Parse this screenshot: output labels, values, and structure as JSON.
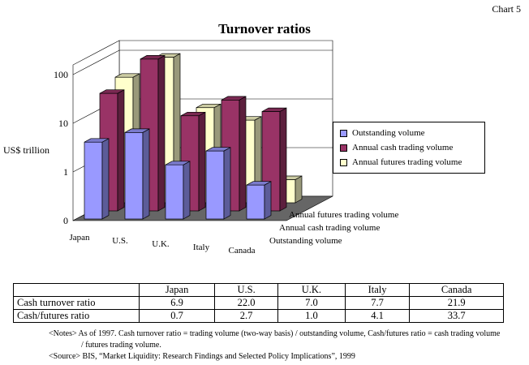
{
  "header": {
    "chart_no": "Chart 5"
  },
  "chart_data": {
    "type": "bar",
    "title": "Turnover ratios",
    "ylabel": "US$ trillion",
    "scale": "log",
    "yticks": [
      "0",
      "1",
      "10",
      "100"
    ],
    "categories": [
      "Japan",
      "U.S.",
      "U.K.",
      "Italy",
      "Canada"
    ],
    "depth_labels": [
      "Annual futures trading volume",
      "Annual cash trading volume",
      "Outstanding volume"
    ],
    "series": [
      {
        "name": "Outstanding volume",
        "values": [
          3.8,
          6.0,
          1.3,
          2.5,
          0.5
        ],
        "color": "#9999ff"
      },
      {
        "name": "Annual cash trading volume",
        "values": [
          26,
          132,
          9,
          19,
          11
        ],
        "color": "#993366"
      },
      {
        "name": "Annual futures trading volume",
        "values": [
          38,
          98,
          9,
          5,
          0.3
        ],
        "color": "#ffffcc"
      }
    ],
    "legend_position": "right",
    "grid": true
  },
  "table": {
    "headers": [
      "",
      "Japan",
      "U.S.",
      "U.K.",
      "Italy",
      "Canada"
    ],
    "rows": [
      {
        "label": "Cash turnover ratio",
        "values": [
          "6.9",
          "22.0",
          "7.0",
          "7.7",
          "21.9"
        ]
      },
      {
        "label": "Cash/futures ratio",
        "values": [
          "0.7",
          "2.7",
          "1.0",
          "4.1",
          "33.7"
        ]
      }
    ]
  },
  "notes": {
    "line1": "<Notes> As of 1997. Cash turnover ratio = trading volume (two-way basis) / outstanding volume, Cash/futures ratio = cash trading volume",
    "line2": "/ futures trading volume.",
    "source": "<Source> BIS, “Market Liquidity: Research Findings and Selected Policy Implications”, 1999"
  }
}
